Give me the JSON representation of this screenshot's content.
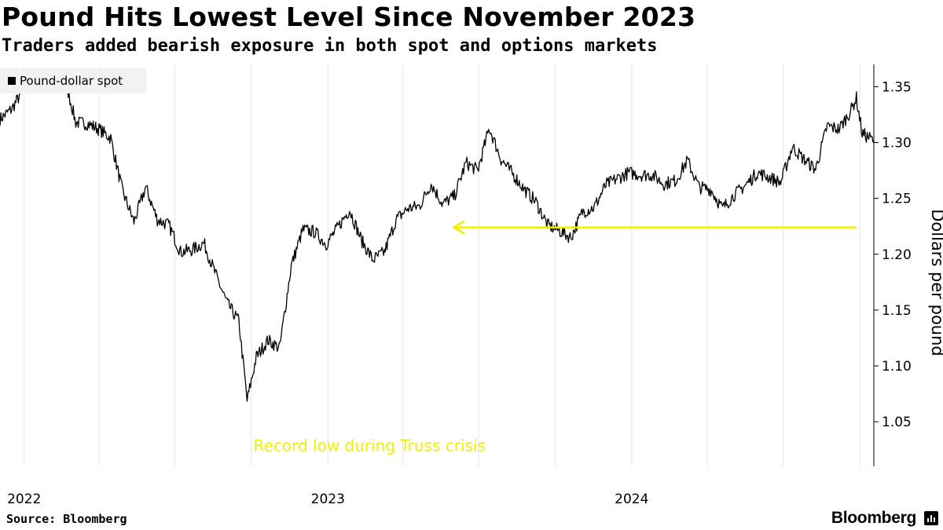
{
  "header": {
    "title": "Pound Hits Lowest Level Since November 2023",
    "subtitle": "Traders added bearish exposure in both spot and options markets"
  },
  "footer": {
    "source": "Source: Bloomberg",
    "brand": "Bloomberg",
    "brand_icon": "bloomberg-terminal-icon"
  },
  "chart_data": {
    "type": "line",
    "title": "Pound Hits Lowest Level Since November 2023",
    "subtitle": "Traders added bearish exposure in both spot and options markets",
    "ylabel": "Dollars per pound",
    "ylim": [
      1.01,
      1.37
    ],
    "yticks": [
      "1.05",
      "1.10",
      "1.15",
      "1.20",
      "1.25",
      "1.30",
      "1.35"
    ],
    "yaxis_side": "right",
    "xlim": [
      "2021-12-03",
      "2024-10-18"
    ],
    "xticks": [
      {
        "date": "2022-01-01",
        "label": "2022"
      },
      {
        "date": "2023-01-01",
        "label": "2023"
      },
      {
        "date": "2024-01-01",
        "label": "2024"
      }
    ],
    "grid": "vertical",
    "legend": "top-left",
    "series": [
      {
        "name": "Pound-dollar spot",
        "color": "#000000",
        "x": [
          "2021-12-03",
          "2021-12-17",
          "2022-01-07",
          "2022-01-21",
          "2022-02-04",
          "2022-02-18",
          "2022-03-04",
          "2022-03-18",
          "2022-04-01",
          "2022-04-15",
          "2022-04-29",
          "2022-05-13",
          "2022-05-27",
          "2022-06-10",
          "2022-06-24",
          "2022-07-08",
          "2022-07-22",
          "2022-08-05",
          "2022-08-19",
          "2022-09-02",
          "2022-09-16",
          "2022-09-26",
          "2022-10-07",
          "2022-10-21",
          "2022-11-04",
          "2022-11-18",
          "2022-12-02",
          "2022-12-16",
          "2022-12-30",
          "2023-01-13",
          "2023-01-27",
          "2023-02-10",
          "2023-02-24",
          "2023-03-10",
          "2023-03-24",
          "2023-04-07",
          "2023-04-21",
          "2023-05-05",
          "2023-05-19",
          "2023-06-02",
          "2023-06-16",
          "2023-06-30",
          "2023-07-14",
          "2023-07-28",
          "2023-08-11",
          "2023-08-25",
          "2023-09-08",
          "2023-09-22",
          "2023-10-06",
          "2023-10-20",
          "2023-11-03",
          "2023-11-17",
          "2023-12-01",
          "2023-12-15",
          "2023-12-29",
          "2024-01-12",
          "2024-01-26",
          "2024-02-09",
          "2024-02-23",
          "2024-03-08",
          "2024-03-22",
          "2024-04-05",
          "2024-04-19",
          "2024-05-03",
          "2024-05-17",
          "2024-05-31",
          "2024-06-14",
          "2024-06-28",
          "2024-07-12",
          "2024-07-26",
          "2024-08-09",
          "2024-08-23",
          "2024-09-06",
          "2024-09-20",
          "2024-09-27",
          "2024-10-04",
          "2024-10-11",
          "2024-10-18"
        ],
        "values": [
          1.321,
          1.33,
          1.356,
          1.36,
          1.352,
          1.36,
          1.318,
          1.317,
          1.312,
          1.304,
          1.257,
          1.229,
          1.26,
          1.231,
          1.226,
          1.202,
          1.204,
          1.21,
          1.182,
          1.156,
          1.14,
          1.069,
          1.108,
          1.123,
          1.116,
          1.19,
          1.222,
          1.22,
          1.209,
          1.224,
          1.24,
          1.213,
          1.195,
          1.202,
          1.231,
          1.241,
          1.243,
          1.263,
          1.245,
          1.252,
          1.282,
          1.275,
          1.313,
          1.285,
          1.272,
          1.258,
          1.247,
          1.226,
          1.221,
          1.215,
          1.238,
          1.242,
          1.262,
          1.268,
          1.273,
          1.271,
          1.271,
          1.263,
          1.266,
          1.284,
          1.26,
          1.258,
          1.241,
          1.253,
          1.262,
          1.273,
          1.269,
          1.264,
          1.296,
          1.285,
          1.276,
          1.315,
          1.312,
          1.328,
          1.34,
          1.308,
          1.305,
          1.302
        ]
      }
    ],
    "reference_line": {
      "value": 1.224,
      "from": "2023-06-01",
      "to": "2024-10-18",
      "color": "#f0f000"
    },
    "annotations": [
      {
        "text": "Record low during Truss crisis",
        "x": "2022-09-26",
        "y": 1.035,
        "color": "#f0f000"
      }
    ]
  }
}
